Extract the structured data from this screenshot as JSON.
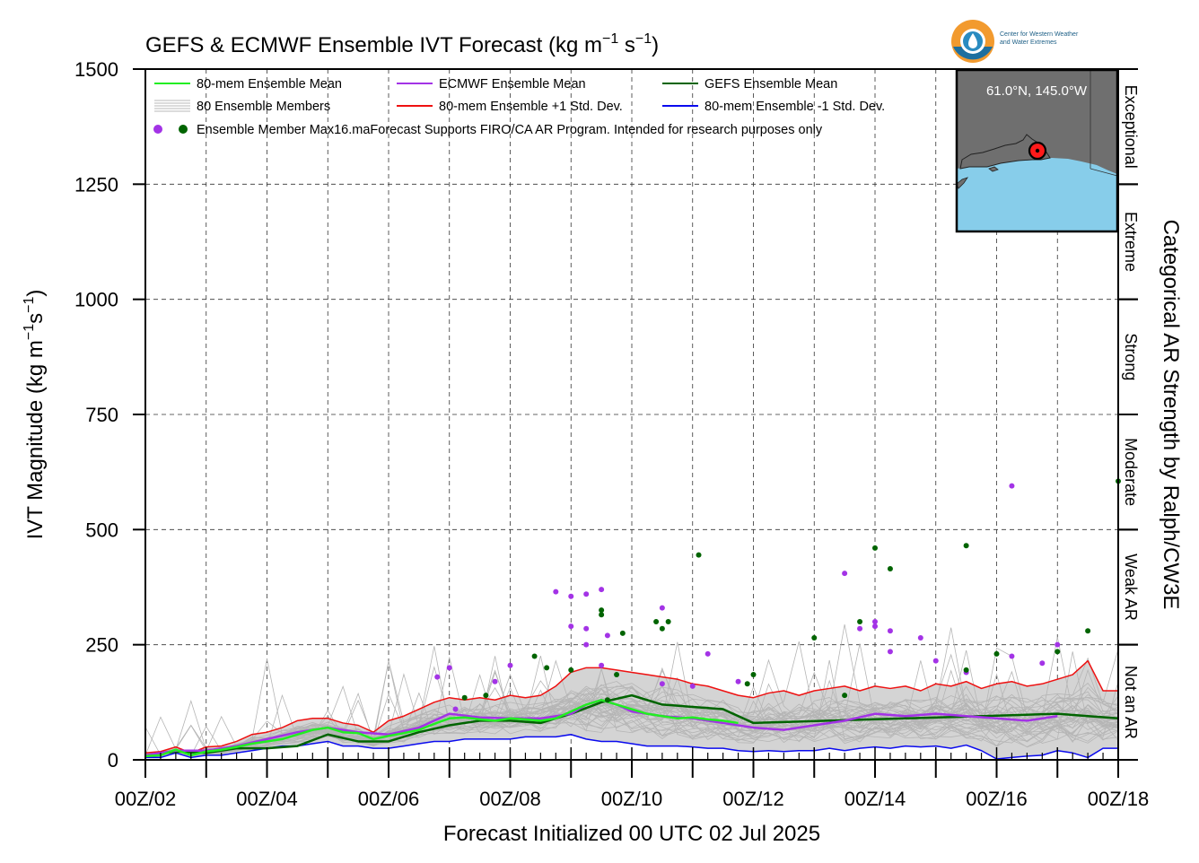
{
  "chart_data": {
    "type": "line",
    "title": "GEFS & ECMWF Ensemble IVT Forecast (kg m⁻¹ s⁻¹)",
    "title_parts": {
      "main": "GEFS & ECMWF Ensemble IVT Forecast (kg m",
      "e1": "−1",
      "mid": " s",
      "e2": "−1",
      "end": ")"
    },
    "ylabel": "IVT Magnitude (kg m⁻¹s⁻¹)",
    "ylabel_parts": {
      "main": "IVT Magnitude (kg m",
      "e1": "−1",
      "mid": "s",
      "e2": "−1",
      "end": ")"
    },
    "xlabel": "Forecast Initialized 00 UTC 02 Jul 2025",
    "right_label": "Categorical AR Strength by Ralph/CW3E",
    "ylim": [
      0,
      1500
    ],
    "xlim_days": [
      2,
      18
    ],
    "x_unit": "day of July 2025 (UTC)",
    "grid": true,
    "legend_position": "top-left",
    "yticks": [
      0,
      250,
      500,
      750,
      1000,
      1250,
      1500
    ],
    "xtick_labels": [
      "00Z/02",
      "00Z/04",
      "00Z/06",
      "00Z/08",
      "00Z/10",
      "00Z/12",
      "00Z/14",
      "00Z/16",
      "00Z/18"
    ],
    "xtick_days": [
      2,
      4,
      6,
      8,
      10,
      12,
      14,
      16,
      18
    ],
    "categories": [
      {
        "label": "Exceptional",
        "range": [
          1250,
          1500
        ]
      },
      {
        "label": "Extreme",
        "range": [
          1000,
          1250
        ]
      },
      {
        "label": "Strong",
        "range": [
          750,
          1000
        ]
      },
      {
        "label": "Moderate",
        "range": [
          500,
          750
        ]
      },
      {
        "label": "Weak AR",
        "range": [
          250,
          500
        ]
      },
      {
        "label": "Not an AR",
        "range": [
          0,
          250
        ]
      }
    ],
    "legend": [
      {
        "label": "80-mem Ensemble Mean",
        "color": "#22ee22",
        "kind": "line"
      },
      {
        "label": "ECMWF Ensemble Mean",
        "color": "#a333e6",
        "kind": "line"
      },
      {
        "label": "GEFS Ensemble Mean",
        "color": "#006400",
        "kind": "line"
      },
      {
        "label": "80 Ensemble Members",
        "color": "#b8b8b8",
        "kind": "lines"
      },
      {
        "label": "80-mem Ensemble +1 Std. Dev.",
        "color": "#ee1111",
        "kind": "line"
      },
      {
        "label": "80-mem Ensemble -1 Std. Dev.",
        "color": "#0a0aee",
        "kind": "line"
      },
      {
        "label": "Ensemble Member Max16.maForecast Supports FIRO/CA AR Program. Intended for research purposes only",
        "color": "#a333e6",
        "color2": "#006400",
        "kind": "dots"
      }
    ],
    "series": [
      {
        "name": "80-mem Ensemble Mean",
        "color": "#22ee22",
        "width": 2.5,
        "x": [
          2,
          2.25,
          2.5,
          2.75,
          3,
          3.25,
          3.5,
          3.75,
          4,
          4.25,
          4.5,
          4.75,
          5,
          5.25,
          5.5,
          5.75,
          6,
          6.25,
          6.5,
          6.75,
          7,
          7.25,
          7.5,
          7.75,
          8,
          8.25,
          8.5,
          8.75,
          9,
          9.25,
          9.5,
          9.75,
          10,
          10.25,
          10.5,
          10.75,
          11,
          11.25,
          11.5,
          11.75
        ],
        "y": [
          8,
          10,
          22,
          10,
          18,
          22,
          28,
          35,
          40,
          45,
          55,
          65,
          70,
          60,
          58,
          45,
          52,
          58,
          65,
          78,
          90,
          92,
          88,
          85,
          90,
          88,
          85,
          90,
          105,
          120,
          130,
          120,
          110,
          100,
          95,
          90,
          92,
          88,
          85,
          80
        ]
      },
      {
        "name": "ECMWF Ensemble Mean",
        "color": "#a333e6",
        "width": 2.5,
        "x": [
          2,
          2.5,
          3,
          3.5,
          4,
          4.5,
          5,
          5.5,
          6,
          6.5,
          7,
          7.5,
          8,
          8.5,
          9,
          9.25,
          9.5,
          9.75,
          10,
          10.5,
          11,
          11.5,
          12,
          12.5,
          13,
          13.5,
          14,
          14.5,
          15,
          15.5,
          16,
          16.5,
          17
        ],
        "y": [
          10,
          20,
          20,
          30,
          45,
          60,
          70,
          60,
          55,
          70,
          100,
          92,
          90,
          90,
          100,
          120,
          130,
          120,
          105,
          95,
          90,
          80,
          70,
          65,
          75,
          85,
          100,
          95,
          100,
          95,
          90,
          85,
          95
        ]
      },
      {
        "name": "GEFS Ensemble Mean",
        "color": "#006400",
        "width": 2.5,
        "x": [
          2,
          2.5,
          3,
          3.5,
          4,
          4.5,
          5,
          5.5,
          6,
          6.5,
          7,
          7.5,
          8,
          8.5,
          9,
          9.5,
          10,
          10.5,
          11,
          11.5,
          12,
          17,
          17.5,
          18
        ],
        "y": [
          8,
          18,
          15,
          25,
          25,
          30,
          55,
          40,
          40,
          60,
          75,
          85,
          85,
          80,
          100,
          125,
          140,
          120,
          115,
          110,
          80,
          100,
          95,
          90
        ]
      },
      {
        "name": "80-mem Ensemble +1 Std. Dev.",
        "color": "#ee1111",
        "width": 1.5,
        "x": [
          2,
          2.25,
          2.5,
          2.75,
          3,
          3.25,
          3.5,
          3.75,
          4,
          4.25,
          4.5,
          4.75,
          5,
          5.25,
          5.5,
          5.75,
          6,
          6.25,
          6.5,
          6.75,
          7,
          7.25,
          7.5,
          7.75,
          8,
          8.25,
          8.5,
          8.75,
          9,
          9.25,
          9.5,
          9.75,
          10,
          10.25,
          10.5,
          10.75,
          11,
          11.25,
          11.5,
          11.75,
          12,
          12.25,
          12.5,
          12.75,
          13,
          13.25,
          13.5,
          13.75,
          14,
          14.25,
          14.5,
          14.75,
          15,
          15.25,
          15.5,
          15.75,
          16,
          16.25,
          16.5,
          16.75,
          17,
          17.25,
          17.5,
          17.75,
          18
        ],
        "y": [
          15,
          18,
          28,
          15,
          28,
          30,
          40,
          55,
          60,
          70,
          85,
          90,
          90,
          80,
          75,
          60,
          85,
          95,
          110,
          125,
          135,
          130,
          135,
          130,
          140,
          135,
          140,
          160,
          190,
          200,
          200,
          195,
          190,
          185,
          180,
          175,
          165,
          160,
          150,
          140,
          135,
          145,
          150,
          140,
          150,
          155,
          160,
          150,
          160,
          155,
          160,
          150,
          165,
          160,
          170,
          155,
          165,
          170,
          160,
          165,
          175,
          185,
          215,
          150,
          150
        ]
      },
      {
        "name": "80-mem Ensemble -1 Std. Dev.",
        "color": "#0a0aee",
        "width": 1.5,
        "x": [
          2,
          2.25,
          2.5,
          2.75,
          3,
          3.25,
          3.5,
          3.75,
          4,
          4.25,
          4.5,
          4.75,
          5,
          5.25,
          5.5,
          5.75,
          6,
          6.25,
          6.5,
          6.75,
          7,
          7.25,
          7.5,
          7.75,
          8,
          8.25,
          8.5,
          8.75,
          9,
          9.25,
          9.5,
          9.75,
          10,
          10.25,
          10.5,
          10.75,
          11,
          11.25,
          11.5,
          11.75,
          12,
          12.25,
          12.5,
          12.75,
          13,
          13.25,
          13.5,
          13.75,
          14,
          14.25,
          14.5,
          14.75,
          15,
          15.25,
          15.5,
          15.75,
          16,
          16.25,
          16.5,
          16.75,
          17,
          17.25,
          17.5,
          17.75,
          18
        ],
        "y": [
          5,
          5,
          15,
          5,
          10,
          10,
          15,
          20,
          25,
          30,
          30,
          35,
          40,
          30,
          30,
          25,
          25,
          30,
          35,
          40,
          40,
          45,
          45,
          45,
          45,
          50,
          50,
          50,
          55,
          45,
          40,
          40,
          35,
          30,
          30,
          30,
          28,
          25,
          25,
          20,
          18,
          20,
          18,
          20,
          20,
          25,
          20,
          25,
          28,
          25,
          30,
          28,
          30,
          25,
          32,
          20,
          2,
          5,
          8,
          10,
          20,
          15,
          5,
          25,
          25
        ]
      }
    ],
    "max_points": [
      {
        "series": "ECMWF",
        "color": "#a333e6",
        "x": [
          6.8,
          7.0,
          7.1,
          7.75,
          8.0,
          8.75,
          9.0,
          9.25,
          9.5,
          9.5,
          9.0,
          9.25,
          9.25,
          9.6,
          10.5,
          10.5,
          11.0,
          11.25,
          11.75,
          13.5,
          13.75,
          14.0,
          14.0,
          14.25,
          14.25,
          14.75,
          15.0,
          15.5,
          16.25,
          16.25,
          16.75,
          17.0
        ],
        "y": [
          180,
          200,
          110,
          170,
          205,
          365,
          355,
          360,
          370,
          205,
          290,
          285,
          250,
          270,
          330,
          165,
          160,
          230,
          170,
          405,
          285,
          300,
          290,
          280,
          235,
          265,
          215,
          190,
          595,
          225,
          210,
          250
        ]
      },
      {
        "series": "GEFS",
        "color": "#006400",
        "x": [
          7.25,
          7.6,
          8.4,
          8.6,
          9.0,
          9.5,
          9.5,
          9.6,
          9.75,
          9.85,
          10.4,
          10.5,
          10.6,
          11.1,
          11.9,
          12.0,
          13.0,
          13.5,
          13.75,
          14.0,
          14.25,
          15.5,
          15.5,
          16.0,
          17.0,
          17.5,
          18.0
        ],
        "y": [
          135,
          140,
          225,
          200,
          195,
          325,
          315,
          130,
          185,
          275,
          300,
          285,
          300,
          445,
          165,
          185,
          265,
          140,
          300,
          460,
          415,
          465,
          195,
          230,
          235,
          280,
          605
        ]
      }
    ]
  },
  "inset_map": {
    "label": "61.0°N, 145.0°W"
  },
  "logo": {
    "line1": "Center for Western Weather",
    "line2": "and Water Extremes"
  }
}
